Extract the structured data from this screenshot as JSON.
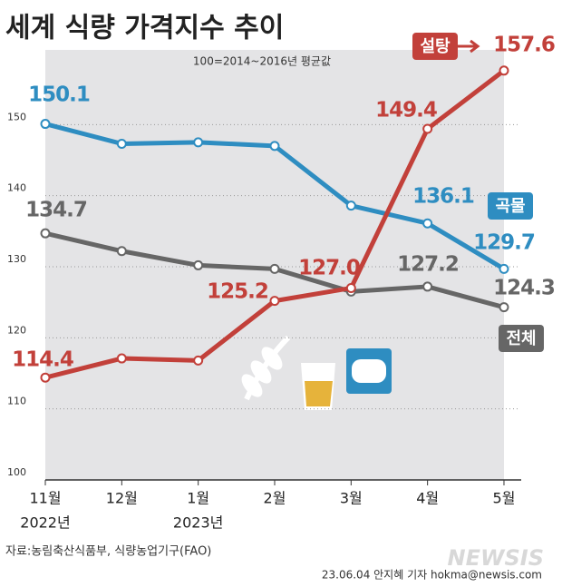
{
  "chart_data": {
    "type": "line",
    "title": "세계 식량 가격지수 추이",
    "subtitle": "100=2014~2016년 평균값",
    "categories": [
      "11월",
      "12월",
      "1월",
      "2월",
      "3월",
      "4월",
      "5월"
    ],
    "x_year_labels": [
      "2022년",
      null,
      "2023년",
      null,
      null,
      null,
      null
    ],
    "ylim": [
      100,
      160
    ],
    "yticks": [
      100,
      110,
      120,
      130,
      140,
      150
    ],
    "grid": true,
    "series": [
      {
        "name": "곡물",
        "color": "#2e8dc1",
        "values": [
          150.1,
          147.3,
          147.5,
          147.0,
          138.6,
          136.1,
          129.7
        ],
        "value_labels": [
          "150.1",
          null,
          null,
          null,
          null,
          "136.1",
          "129.7"
        ]
      },
      {
        "name": "전체",
        "color": "#666666",
        "values": [
          134.7,
          132.2,
          130.2,
          129.7,
          126.5,
          127.2,
          124.3
        ],
        "value_labels": [
          "134.7",
          null,
          null,
          null,
          null,
          "127.2",
          "124.3"
        ]
      },
      {
        "name": "설탕",
        "color": "#c2403a",
        "values": [
          114.4,
          117.1,
          116.8,
          125.2,
          127.0,
          149.4,
          157.6
        ],
        "value_labels": [
          "114.4",
          null,
          null,
          "125.2",
          "127.0",
          "149.4",
          "157.6"
        ]
      }
    ],
    "source": "자료:농림축산식품부, 식량농업기구(FAO)",
    "credit": "23.06.04 안지혜 기자 hokma@newsis.com",
    "logo": "NEWSIS"
  }
}
